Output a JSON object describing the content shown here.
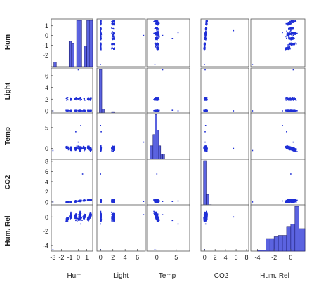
{
  "chart_data": {
    "type": "scatter",
    "subtype": "scatter-matrix",
    "title": "",
    "variables": [
      "Hum",
      "Light",
      "Temp",
      "CO2",
      "Hum. Rel"
    ],
    "point_color": "#1f2fd6",
    "bar_fill": "#5b63e0",
    "bar_stroke": "#1a1a6e",
    "grid": false,
    "diagonal": "histogram",
    "ranges": [
      [
        -3.2,
        1.7
      ],
      [
        -0.6,
        7.3
      ],
      [
        -2.6,
        8.5
      ],
      [
        -0.7,
        8.4
      ],
      [
        -4.8,
        1.7
      ]
    ],
    "x_ticks": [
      [
        -3,
        -2,
        -1,
        0,
        1
      ],
      [
        0,
        2,
        4,
        6
      ],
      [
        0,
        5
      ],
      [
        0,
        2,
        4,
        6,
        8
      ],
      [
        -4,
        -2,
        0
      ]
    ],
    "y_ticks": [
      [
        -2,
        -1,
        0,
        1
      ],
      [
        0,
        2,
        4,
        6
      ],
      [
        0,
        5
      ],
      [
        0,
        2,
        4,
        6,
        8
      ],
      [
        -4,
        -2,
        0
      ]
    ],
    "histograms": [
      {
        "variable": "Hum",
        "bin_edges": [
          -3.2,
          -2.9,
          -2.6,
          -2.3,
          -2.0,
          -1.7,
          -1.4,
          -1.1,
          -0.8,
          -0.5,
          -0.2,
          0.1,
          0.4,
          0.7,
          1.0,
          1.3,
          1.7
        ],
        "counts": [
          0,
          10,
          0,
          0,
          0,
          0,
          0,
          55,
          50,
          0,
          100,
          100,
          0,
          45,
          100,
          100
        ]
      },
      {
        "variable": "Light",
        "bin_edges": [
          -0.6,
          -0.2,
          0.2,
          0.6,
          1.0,
          1.4,
          1.8,
          2.2,
          2.6,
          3.0,
          3.4,
          3.8,
          4.2,
          4.6,
          5.0,
          5.4,
          7.3
        ],
        "counts": [
          0,
          100,
          12,
          0,
          0,
          0,
          6,
          0,
          0,
          0,
          0,
          0,
          0,
          0,
          0,
          0
        ]
      },
      {
        "variable": "Temp",
        "bin_edges": [
          -2.6,
          -1.8,
          -1.0,
          -0.5,
          0.0,
          0.5,
          1.0,
          1.5,
          2.0,
          3.0,
          4.0,
          8.5
        ],
        "counts": [
          0,
          30,
          55,
          100,
          65,
          30,
          12,
          12,
          0,
          0,
          0
        ]
      },
      {
        "variable": "CO2",
        "bin_edges": [
          -0.7,
          -0.2,
          0.3,
          0.8,
          1.3,
          2.0,
          8.4
        ],
        "counts": [
          0,
          100,
          25,
          2,
          0,
          0
        ]
      },
      {
        "variable": "Hum. Rel",
        "bin_edges": [
          -4.8,
          -4.0,
          -3.0,
          -2.5,
          -2.0,
          -1.5,
          -1.0,
          -0.5,
          0.0,
          0.5,
          1.0,
          1.7
        ],
        "counts": [
          0,
          2,
          28,
          28,
          32,
          35,
          35,
          55,
          60,
          100,
          50
        ]
      }
    ],
    "clusters": [
      {
        "cx": -0.9,
        "cy": 0.15,
        "sx": 0.12,
        "sy": 0.35,
        "w": 0.12
      },
      {
        "cx": -0.3,
        "cy": 0.1,
        "sx": 0.12,
        "sy": 0.35,
        "w": 0.12
      },
      {
        "cx": 0.2,
        "cy": 0.3,
        "sx": 0.14,
        "sy": 0.35,
        "w": 0.14
      },
      {
        "cx": 0.7,
        "cy": 0.05,
        "sx": 0.12,
        "sy": 0.3,
        "w": 0.1
      },
      {
        "cx": 1.2,
        "cy": -0.2,
        "sx": 0.12,
        "sy": 0.3,
        "w": 0.12
      },
      {
        "cx": 1.45,
        "cy": 0.3,
        "sx": 0.1,
        "sy": 0.4,
        "w": 0.14
      },
      {
        "cx": -1.3,
        "cy": -0.3,
        "sx": 0.15,
        "sy": 0.3,
        "w": 0.1
      },
      {
        "cx": 0.1,
        "cy": -0.3,
        "sx": 0.3,
        "sy": 0.25,
        "w": 0.08
      }
    ],
    "outliers": [
      {
        "hum": -3.0,
        "light": 0.0,
        "temp": -0.5,
        "co2": 0.0,
        "humrel": -4.6
      },
      {
        "hum": 0.0,
        "light": 7.0,
        "temp": 1.5,
        "co2": 0.1,
        "humrel": 0.3
      },
      {
        "hum": 0.3,
        "light": 0.0,
        "temp": 5.5,
        "co2": 0.2,
        "humrel": -1.0
      },
      {
        "hum": -0.3,
        "light": 0.1,
        "temp": 4.0,
        "co2": 0.1,
        "humrel": -0.5
      },
      {
        "hum": 0.5,
        "light": 0.0,
        "temp": 0.0,
        "co2": 5.5,
        "humrel": 0.0
      }
    ]
  }
}
